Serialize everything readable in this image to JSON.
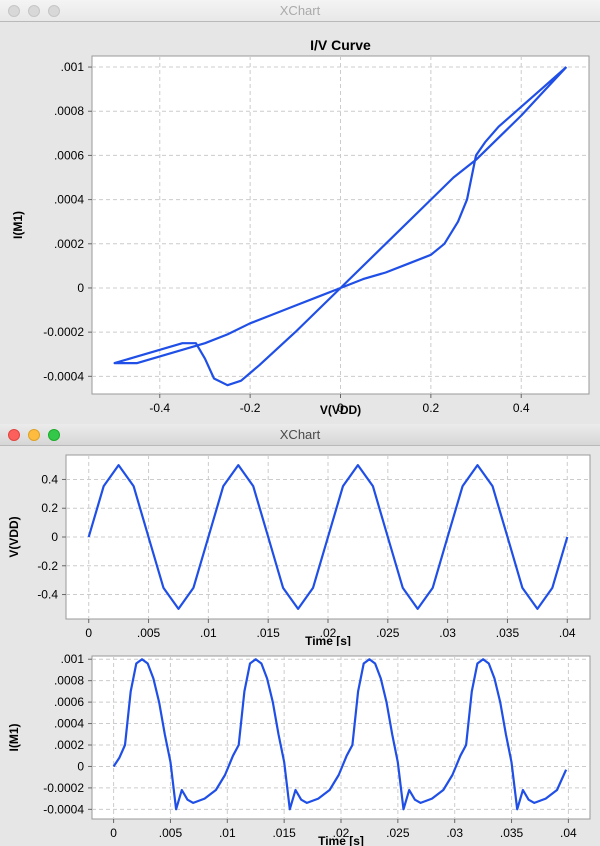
{
  "windows": [
    {
      "title": "XChart",
      "state": "inactive"
    },
    {
      "title": "XChart",
      "state": "active"
    }
  ],
  "colors": {
    "series": "#1f4fe6",
    "grid": "#cccccc",
    "plot_bg": "#ffffff",
    "window_bg": "#e6e6e6"
  },
  "chart_data": [
    {
      "type": "line",
      "title": "I/V Curve",
      "xlabel": "V(VDD)",
      "ylabel": "I(M1)",
      "xlim": [
        -0.55,
        0.55
      ],
      "ylim": [
        -0.00048,
        0.00105
      ],
      "xticks": [
        -0.4,
        -0.2,
        0,
        0.2,
        0.4
      ],
      "xtick_labels": [
        "-0.4",
        "-0.2",
        "0",
        "0.2",
        "0.4"
      ],
      "yticks": [
        -0.0004,
        -0.0002,
        0,
        0.0002,
        0.0004,
        0.0006,
        0.0008,
        0.001
      ],
      "ytick_labels": [
        "-0.0004",
        "-0.0002",
        "0",
        ".0002",
        ".0004",
        ".0006",
        ".0008",
        ".001"
      ],
      "grid": true,
      "series": [
        {
          "points": [
            [
              0.5,
              0.001
            ],
            [
              0.45,
              0.00091
            ],
            [
              0.4,
              0.00082
            ],
            [
              0.35,
              0.00073
            ],
            [
              0.32,
              0.00066
            ],
            [
              0.3,
              0.0006
            ],
            [
              0.28,
              0.0004
            ],
            [
              0.26,
              0.0003
            ],
            [
              0.23,
              0.0002
            ],
            [
              0.2,
              0.00015
            ],
            [
              0.15,
              0.00011
            ],
            [
              0.1,
              7e-05
            ],
            [
              0.05,
              4e-05
            ],
            [
              0,
              0
            ],
            [
              -0.05,
              -4e-05
            ],
            [
              -0.1,
              -8e-05
            ],
            [
              -0.15,
              -0.00012
            ],
            [
              -0.2,
              -0.00016
            ],
            [
              -0.25,
              -0.00021
            ],
            [
              -0.3,
              -0.00025
            ],
            [
              -0.35,
              -0.00028
            ],
            [
              -0.4,
              -0.00031
            ],
            [
              -0.45,
              -0.00034
            ],
            [
              -0.5,
              -0.00034
            ],
            [
              -0.45,
              -0.00031
            ],
            [
              -0.4,
              -0.00028
            ],
            [
              -0.35,
              -0.00025
            ],
            [
              -0.32,
              -0.00025
            ],
            [
              -0.3,
              -0.00032
            ],
            [
              -0.28,
              -0.00041
            ],
            [
              -0.25,
              -0.00044
            ],
            [
              -0.22,
              -0.00042
            ],
            [
              -0.18,
              -0.00035
            ],
            [
              -0.1,
              -0.0002
            ],
            [
              0,
              0
            ],
            [
              0.1,
              0.0002
            ],
            [
              0.2,
              0.0004
            ],
            [
              0.25,
              0.0005
            ],
            [
              0.3,
              0.00058
            ],
            [
              0.35,
              0.00068
            ],
            [
              0.4,
              0.00078
            ],
            [
              0.45,
              0.00089
            ],
            [
              0.5,
              0.001
            ]
          ]
        }
      ]
    },
    {
      "type": "line",
      "title": "",
      "xlabel": "Time [s]",
      "ylabel": "V(VDD)",
      "xlim": [
        -0.0019,
        0.0419
      ],
      "ylim": [
        -0.57,
        0.57
      ],
      "xticks": [
        0,
        0.005,
        0.01,
        0.015,
        0.02,
        0.025,
        0.03,
        0.035,
        0.04
      ],
      "xtick_labels": [
        "0",
        ".005",
        ".01",
        ".015",
        ".02",
        ".025",
        ".03",
        ".035",
        ".04"
      ],
      "yticks": [
        -0.4,
        -0.2,
        0,
        0.2,
        0.4
      ],
      "ytick_labels": [
        "-0.4",
        "-0.2",
        "0",
        "0.2",
        "0.4"
      ],
      "grid": true,
      "series": [
        {
          "points": [
            [
              0,
              0
            ],
            [
              0.00125,
              0.354
            ],
            [
              0.0025,
              0.5
            ],
            [
              0.00375,
              0.354
            ],
            [
              0.005,
              0
            ],
            [
              0.00625,
              -0.354
            ],
            [
              0.0075,
              -0.5
            ],
            [
              0.00875,
              -0.354
            ],
            [
              0.01,
              0
            ],
            [
              0.01125,
              0.354
            ],
            [
              0.0125,
              0.5
            ],
            [
              0.01375,
              0.354
            ],
            [
              0.015,
              0
            ],
            [
              0.01625,
              -0.354
            ],
            [
              0.0175,
              -0.5
            ],
            [
              0.01875,
              -0.354
            ],
            [
              0.02,
              0
            ],
            [
              0.02125,
              0.354
            ],
            [
              0.0225,
              0.5
            ],
            [
              0.02375,
              0.354
            ],
            [
              0.025,
              0
            ],
            [
              0.02625,
              -0.354
            ],
            [
              0.0275,
              -0.5
            ],
            [
              0.02875,
              -0.354
            ],
            [
              0.03,
              0
            ],
            [
              0.03125,
              0.354
            ],
            [
              0.0325,
              0.5
            ],
            [
              0.03375,
              0.354
            ],
            [
              0.035,
              0
            ],
            [
              0.03625,
              -0.354
            ],
            [
              0.0375,
              -0.5
            ],
            [
              0.03875,
              -0.354
            ],
            [
              0.04,
              0
            ]
          ]
        }
      ]
    },
    {
      "type": "line",
      "title": "",
      "xlabel": "Time [s]",
      "ylabel": "I(M1)",
      "xlim": [
        -0.0019,
        0.0419
      ],
      "ylim": [
        -0.00049,
        0.00103
      ],
      "xticks": [
        0,
        0.005,
        0.01,
        0.015,
        0.02,
        0.025,
        0.03,
        0.035,
        0.04
      ],
      "xtick_labels": [
        "0",
        ".005",
        ".01",
        ".015",
        ".02",
        ".025",
        ".03",
        ".035",
        ".04"
      ],
      "yticks": [
        -0.0004,
        -0.0002,
        0,
        0.0002,
        0.0004,
        0.0006,
        0.0008,
        0.001
      ],
      "ytick_labels": [
        "-0.0004",
        "-0.0002",
        "0",
        ".0002",
        ".0004",
        ".0006",
        ".0008",
        ".001"
      ],
      "grid": true,
      "series": [
        {
          "points": [
            [
              0,
              0
            ],
            [
              0.0005,
              8e-05
            ],
            [
              0.001,
              0.0002
            ],
            [
              0.0015,
              0.0007
            ],
            [
              0.002,
              0.00096
            ],
            [
              0.0025,
              0.001
            ],
            [
              0.003,
              0.00096
            ],
            [
              0.0035,
              0.00082
            ],
            [
              0.004,
              0.0006
            ],
            [
              0.0045,
              0.0003
            ],
            [
              0.005,
              4e-05
            ],
            [
              0.0055,
              -0.0004
            ],
            [
              0.006,
              -0.00022
            ],
            [
              0.0065,
              -0.00031
            ],
            [
              0.007,
              -0.00034
            ],
            [
              0.008,
              -0.0003
            ],
            [
              0.009,
              -0.00022
            ],
            [
              0.0098,
              -8e-05
            ],
            [
              0.0105,
              0.0001
            ],
            [
              0.011,
              0.0002
            ],
            [
              0.0115,
              0.0007
            ],
            [
              0.012,
              0.00096
            ],
            [
              0.0125,
              0.001
            ],
            [
              0.013,
              0.00096
            ],
            [
              0.0135,
              0.00082
            ],
            [
              0.014,
              0.0006
            ],
            [
              0.0145,
              0.0003
            ],
            [
              0.015,
              4e-05
            ],
            [
              0.0155,
              -0.0004
            ],
            [
              0.016,
              -0.00022
            ],
            [
              0.0165,
              -0.00031
            ],
            [
              0.017,
              -0.00034
            ],
            [
              0.018,
              -0.0003
            ],
            [
              0.019,
              -0.00022
            ],
            [
              0.0198,
              -8e-05
            ],
            [
              0.0205,
              0.0001
            ],
            [
              0.021,
              0.0002
            ],
            [
              0.0215,
              0.0007
            ],
            [
              0.022,
              0.00096
            ],
            [
              0.0225,
              0.001
            ],
            [
              0.023,
              0.00096
            ],
            [
              0.0235,
              0.00082
            ],
            [
              0.024,
              0.0006
            ],
            [
              0.0245,
              0.0003
            ],
            [
              0.025,
              4e-05
            ],
            [
              0.0255,
              -0.0004
            ],
            [
              0.026,
              -0.00022
            ],
            [
              0.0265,
              -0.00031
            ],
            [
              0.027,
              -0.00034
            ],
            [
              0.028,
              -0.0003
            ],
            [
              0.029,
              -0.00022
            ],
            [
              0.0298,
              -8e-05
            ],
            [
              0.0305,
              0.0001
            ],
            [
              0.031,
              0.0002
            ],
            [
              0.0315,
              0.0007
            ],
            [
              0.032,
              0.00096
            ],
            [
              0.0325,
              0.001
            ],
            [
              0.033,
              0.00096
            ],
            [
              0.0335,
              0.00082
            ],
            [
              0.034,
              0.0006
            ],
            [
              0.0345,
              0.0003
            ],
            [
              0.035,
              4e-05
            ],
            [
              0.0355,
              -0.0004
            ],
            [
              0.036,
              -0.00022
            ],
            [
              0.0365,
              -0.00031
            ],
            [
              0.037,
              -0.00034
            ],
            [
              0.038,
              -0.0003
            ],
            [
              0.039,
              -0.00022
            ],
            [
              0.0398,
              -3e-05
            ]
          ]
        }
      ]
    }
  ]
}
